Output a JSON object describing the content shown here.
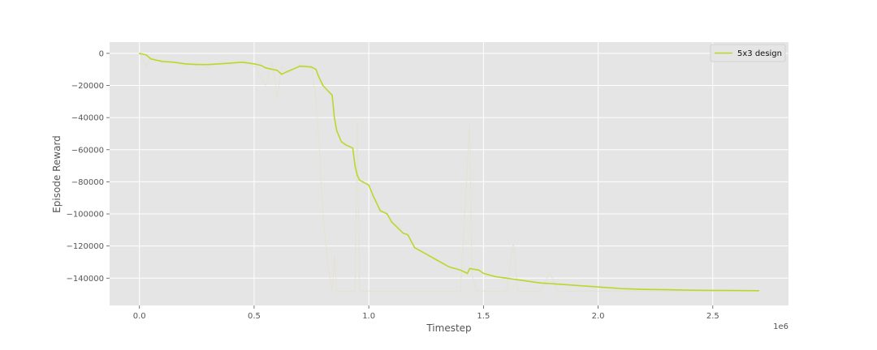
{
  "chart_data": {
    "type": "line",
    "title": "",
    "xlabel": "Timestep",
    "ylabel": "Episode Reward",
    "x_scale_label": "1e6",
    "xlim": [
      -0.13,
      2.83
    ],
    "ylim": [
      -157000,
      7000
    ],
    "x_ticks": [
      0.0,
      0.5,
      1.0,
      1.5,
      2.0,
      2.5
    ],
    "x_tick_labels": [
      "0.0",
      "0.5",
      "1.0",
      "1.5",
      "2.0",
      "2.5"
    ],
    "y_ticks": [
      0,
      -20000,
      -40000,
      -60000,
      -80000,
      -100000,
      -120000,
      -140000
    ],
    "y_tick_labels": [
      "0",
      "−20000",
      "−40000",
      "−60000",
      "−80000",
      "−100000",
      "−120000",
      "−140000"
    ],
    "grid": true,
    "legend_position": "top-right",
    "colors": {
      "plot_background": "#e5e5e5",
      "grid": "#ffffff",
      "series": "#bcd62b",
      "raw": "#e4e2cf"
    },
    "series": [
      {
        "name": "5x3 design",
        "x": [
          0.0,
          0.03,
          0.05,
          0.1,
          0.15,
          0.2,
          0.25,
          0.3,
          0.35,
          0.4,
          0.45,
          0.5,
          0.53,
          0.55,
          0.58,
          0.6,
          0.62,
          0.65,
          0.7,
          0.75,
          0.77,
          0.78,
          0.8,
          0.82,
          0.84,
          0.85,
          0.86,
          0.88,
          0.9,
          0.93,
          0.94,
          0.95,
          0.96,
          1.0,
          1.02,
          1.05,
          1.08,
          1.1,
          1.15,
          1.17,
          1.2,
          1.25,
          1.3,
          1.35,
          1.4,
          1.43,
          1.44,
          1.48,
          1.5,
          1.55,
          1.6,
          1.65,
          1.7,
          1.75,
          1.8,
          1.85,
          1.9,
          2.0,
          2.1,
          2.2,
          2.3,
          2.4,
          2.5,
          2.6,
          2.7
        ],
        "values": [
          0,
          -1000,
          -3500,
          -5000,
          -5500,
          -6500,
          -7000,
          -7000,
          -6500,
          -6000,
          -5500,
          -6500,
          -7500,
          -9000,
          -10000,
          -10500,
          -13000,
          -11000,
          -8000,
          -8500,
          -10000,
          -14000,
          -20000,
          -23000,
          -26000,
          -40000,
          -48000,
          -55000,
          -57000,
          -59000,
          -70000,
          -76000,
          -79000,
          -82000,
          -89000,
          -98000,
          -100000,
          -105000,
          -112000,
          -113000,
          -121000,
          -125000,
          -129000,
          -133000,
          -135000,
          -137000,
          -134000,
          -135000,
          -137000,
          -139000,
          -140000,
          -141000,
          -142000,
          -143000,
          -143500,
          -144000,
          -144500,
          -145500,
          -146500,
          -147000,
          -147200,
          -147500,
          -147600,
          -147700,
          -147800
        ]
      }
    ],
    "raw_series": {
      "x": [
        0.0,
        0.03,
        0.05,
        0.1,
        0.15,
        0.2,
        0.25,
        0.3,
        0.35,
        0.4,
        0.45,
        0.5,
        0.55,
        0.58,
        0.6,
        0.62,
        0.65,
        0.7,
        0.75,
        0.77,
        0.78,
        0.8,
        0.82,
        0.84,
        0.85,
        0.86,
        0.88,
        0.9,
        0.93,
        0.94,
        0.95,
        0.96,
        1.0,
        1.1,
        1.2,
        1.3,
        1.35,
        1.4,
        1.44,
        1.45,
        1.47,
        1.5,
        1.55,
        1.6,
        1.63,
        1.65,
        1.7,
        1.75,
        1.79,
        1.82,
        1.9,
        2.0,
        2.2,
        2.5,
        2.7
      ],
      "values": [
        0,
        -8000,
        -2000,
        -6000,
        -5000,
        -8000,
        -6000,
        -9000,
        -5000,
        -7000,
        -4000,
        -8000,
        -20000,
        -6000,
        -28000,
        -8000,
        -12000,
        -7000,
        -8000,
        -30000,
        -48000,
        -100000,
        -130000,
        -148000,
        -125000,
        -148000,
        -148000,
        -148000,
        -148000,
        -148000,
        -42000,
        -148000,
        -148000,
        -148000,
        -148000,
        -148000,
        -148000,
        -148000,
        -44000,
        -138000,
        -148000,
        -148000,
        -148000,
        -148000,
        -118000,
        -148000,
        -148000,
        -148000,
        -136000,
        -148000,
        -148000,
        -148000,
        -148000,
        -148000,
        -148000
      ]
    }
  }
}
